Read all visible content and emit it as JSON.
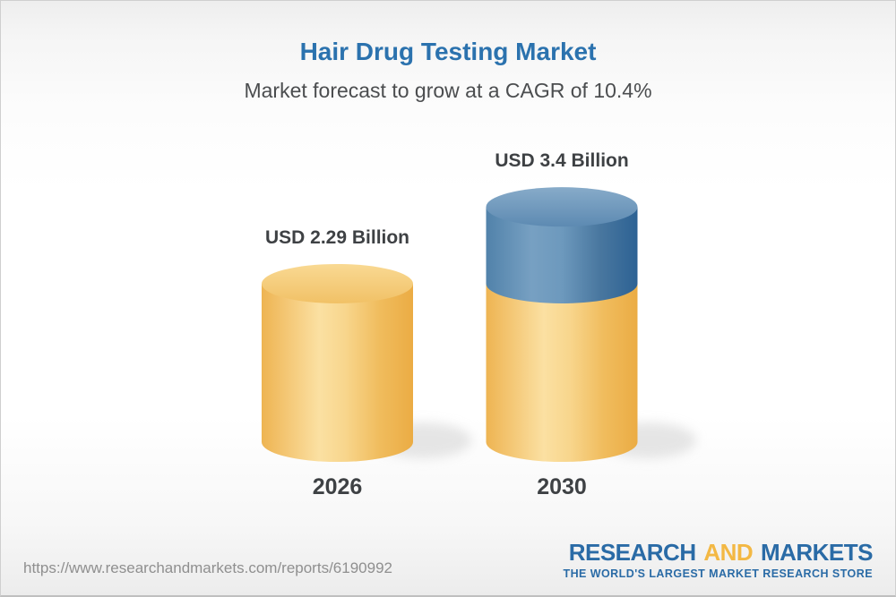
{
  "header": {
    "title": "Hair Drug Testing Market",
    "subtitle": "Market forecast to grow at a CAGR of 10.4%"
  },
  "chart_data": {
    "type": "bar",
    "style": "3d-cylinder",
    "title": "Hair Drug Testing Market",
    "subtitle": "Market forecast to grow at a CAGR of 10.4%",
    "cagr_percent": 10.4,
    "unit": "USD Billion",
    "categories": [
      "2026",
      "2030"
    ],
    "values": [
      2.29,
      3.4
    ],
    "value_labels": [
      "USD 2.29 Billion",
      "USD 3.4 Billion"
    ],
    "ylim": [
      0,
      3.6
    ],
    "grid": false,
    "legend": false,
    "bars": [
      {
        "category": "2026",
        "label": "USD 2.29 Billion",
        "segments": [
          {
            "colorKey": "yellow",
            "value": 2.29
          }
        ]
      },
      {
        "category": "2030",
        "label": "USD 3.4 Billion",
        "segments": [
          {
            "colorKey": "yellow",
            "value": 2.29
          },
          {
            "colorKey": "blue",
            "value": 1.11
          }
        ]
      }
    ],
    "colors": {
      "yellow": "#f2c169",
      "blue": "#4b7ea9",
      "title_blue": "#2b72ae",
      "label_dark": "#3e4144"
    }
  },
  "footer": {
    "url": "https://www.researchandmarkets.com/reports/6190992",
    "logo": {
      "part1": "RESEARCH",
      "part2": "AND",
      "part3": "MARKETS",
      "tagline": "THE WORLD'S LARGEST MARKET RESEARCH STORE",
      "blue": "#2a6ba6",
      "yellow": "#f3b844"
    }
  }
}
